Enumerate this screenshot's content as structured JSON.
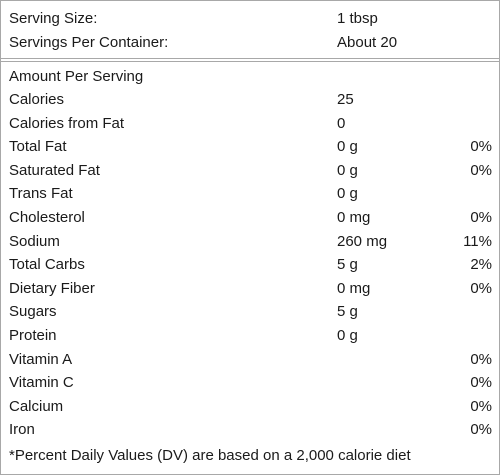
{
  "serving": {
    "size_label": "Serving Size:",
    "size_value": "1 tbsp",
    "per_container_label": "Servings Per Container:",
    "per_container_value": "About 20"
  },
  "amount_per_serving": "Amount Per Serving",
  "nutrients": [
    {
      "name": "Calories",
      "amount": "25",
      "dv": ""
    },
    {
      "name": "Calories from Fat",
      "amount": "0",
      "dv": ""
    },
    {
      "name": "Total Fat",
      "amount": "0 g",
      "dv": "0%"
    },
    {
      "name": "Saturated Fat",
      "amount": "0 g",
      "dv": "0%"
    },
    {
      "name": "Trans Fat",
      "amount": "0 g",
      "dv": ""
    },
    {
      "name": "Cholesterol",
      "amount": "0 mg",
      "dv": "0%"
    },
    {
      "name": "Sodium",
      "amount": "260 mg",
      "dv": "11%"
    },
    {
      "name": "Total Carbs",
      "amount": "5 g",
      "dv": "2%"
    },
    {
      "name": "Dietary Fiber",
      "amount": "0 mg",
      "dv": "0%"
    },
    {
      "name": "Sugars",
      "amount": "5 g",
      "dv": ""
    },
    {
      "name": "Protein",
      "amount": "0 g",
      "dv": ""
    },
    {
      "name": "Vitamin A",
      "amount": "",
      "dv": "0%"
    },
    {
      "name": "Vitamin C",
      "amount": "",
      "dv": "0%"
    },
    {
      "name": "Calcium",
      "amount": "",
      "dv": "0%"
    },
    {
      "name": "Iron",
      "amount": "",
      "dv": "0%"
    }
  ],
  "footnote": "*Percent Daily Values (DV) are based on a 2,000 calorie diet"
}
